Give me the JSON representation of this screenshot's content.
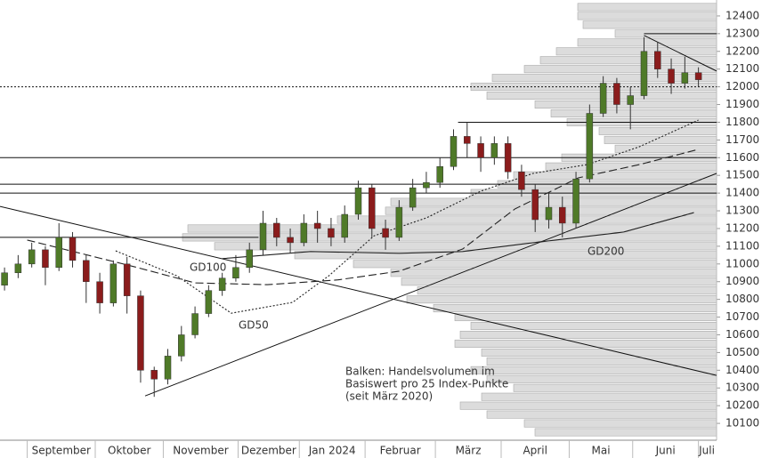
{
  "chart_data": {
    "type": "candlestick",
    "x": [
      2,
      8,
      14,
      20,
      26,
      32,
      38,
      44,
      50,
      56,
      62,
      68,
      74,
      80,
      86,
      92,
      98,
      104,
      110,
      116,
      122,
      128,
      134,
      140,
      146,
      152,
      158,
      164,
      170,
      176,
      182,
      188,
      194,
      200,
      206,
      212,
      218,
      224,
      230,
      236,
      242,
      248,
      254,
      260,
      266,
      272,
      278,
      284,
      290,
      296,
      302,
      308
    ],
    "open": [
      10880,
      10950,
      11000,
      11080,
      10980,
      11150,
      11020,
      10900,
      10780,
      11000,
      10820,
      10400,
      10350,
      10480,
      10600,
      10720,
      10850,
      10920,
      10980,
      11080,
      11230,
      11150,
      11120,
      11230,
      11200,
      11150,
      11280,
      11430,
      11200,
      11150,
      11320,
      11430,
      11460,
      11550,
      11720,
      11680,
      11600,
      11680,
      11520,
      11420,
      11250,
      11320,
      11230,
      11480,
      11850,
      12020,
      11900,
      11950,
      12200,
      12100,
      12020,
      12080
    ],
    "high": [
      10980,
      11050,
      11120,
      11100,
      11230,
      11180,
      11050,
      10950,
      11020,
      11040,
      10850,
      10420,
      10520,
      10650,
      10760,
      10880,
      10950,
      11050,
      11120,
      11300,
      11260,
      11200,
      11280,
      11300,
      11260,
      11330,
      11470,
      11450,
      11250,
      11360,
      11480,
      11520,
      11600,
      11760,
      11800,
      11720,
      11720,
      11720,
      11560,
      11450,
      11400,
      11380,
      11520,
      11900,
      12060,
      12050,
      12000,
      12280,
      12250,
      12160,
      12170,
      12110
    ],
    "low": [
      10850,
      10920,
      10980,
      10880,
      10960,
      10980,
      10780,
      10720,
      10760,
      10720,
      10330,
      10250,
      10320,
      10450,
      10580,
      10700,
      10820,
      10900,
      10950,
      11050,
      11100,
      11060,
      11100,
      11120,
      11100,
      11120,
      11250,
      11150,
      11080,
      11130,
      11300,
      11400,
      11430,
      11530,
      11600,
      11520,
      11560,
      11480,
      11380,
      11180,
      11200,
      11150,
      11200,
      11460,
      11830,
      11850,
      11760,
      11930,
      12050,
      11960,
      11990,
      12000
    ],
    "close": [
      10950,
      11000,
      11080,
      10980,
      11150,
      11020,
      10900,
      10780,
      11000,
      10820,
      10400,
      10350,
      10480,
      10600,
      10720,
      10850,
      10920,
      10980,
      11080,
      11230,
      11150,
      11120,
      11230,
      11200,
      11150,
      11280,
      11430,
      11200,
      11150,
      11320,
      11430,
      11460,
      11550,
      11720,
      11680,
      11600,
      11680,
      11520,
      11420,
      11250,
      11320,
      11230,
      11480,
      11850,
      12020,
      11900,
      11950,
      12200,
      12100,
      12020,
      12080,
      12040
    ],
    "up_color": "#4f7a28",
    "down_color": "#8b1c1c",
    "xlim": [
      0,
      316
    ],
    "ylim": [
      10005,
      12490
    ],
    "yticks": [
      10100,
      10200,
      10300,
      10400,
      10500,
      10600,
      10700,
      10800,
      10900,
      11000,
      11100,
      11200,
      11300,
      11400,
      11500,
      11600,
      11700,
      11800,
      11900,
      12000,
      12100,
      12200,
      12300,
      12400
    ],
    "xticks": [
      {
        "value": 12,
        "label": "September"
      },
      {
        "value": 42,
        "label": "Oktober"
      },
      {
        "value": 72,
        "label": "November"
      },
      {
        "value": 105,
        "label": "Dezember"
      },
      {
        "value": 132,
        "label": "Jan 2024"
      },
      {
        "value": 161,
        "label": "Februar"
      },
      {
        "value": 192,
        "label": "März"
      },
      {
        "value": 221,
        "label": "April"
      },
      {
        "value": 251,
        "label": "Mai"
      },
      {
        "value": 279,
        "label": "Juni"
      },
      {
        "value": 308,
        "label": "Juli"
      }
    ],
    "moving_averages": [
      {
        "name": "GD50",
        "style": "dotted",
        "x": [
          51,
          78,
          102,
          129,
          145,
          165,
          188,
          212,
          235,
          259,
          282,
          308
        ],
        "values": [
          11074,
          10933,
          10722,
          10783,
          10933,
          11159,
          11260,
          11411,
          11511,
          11561,
          11662,
          11812
        ]
      },
      {
        "name": "GD100",
        "style": "dashed",
        "x": [
          12,
          59,
          86,
          118,
          149,
          176,
          204,
          227,
          255,
          282,
          308
        ],
        "values": [
          11135,
          10985,
          10893,
          10883,
          10910,
          10959,
          11084,
          11310,
          11486,
          11561,
          11647
        ]
      },
      {
        "name": "GD200",
        "style": "solid",
        "x": [
          98,
          137,
          176,
          204,
          235,
          275,
          306
        ],
        "values": [
          11030,
          11070,
          11060,
          11070,
          11120,
          11180,
          11290
        ]
      }
    ],
    "trendlines": [
      {
        "x": [
          0,
          316
        ],
        "values": [
          11325,
          10371
        ]
      },
      {
        "x": [
          284,
          316
        ],
        "values": [
          12290,
          12089
        ]
      },
      {
        "x": [
          64,
          316
        ],
        "values": [
          10255,
          11511
        ]
      }
    ],
    "levels": [
      {
        "value": 12300,
        "x": [
          284,
          316
        ],
        "style": "solid"
      },
      {
        "value": 11800,
        "x": [
          202,
          316
        ],
        "style": "solid"
      },
      {
        "value": 11600,
        "x": [
          0,
          316
        ],
        "style": "solid"
      },
      {
        "value": 11450,
        "x": [
          0,
          316
        ],
        "style": "solid"
      },
      {
        "value": 11400,
        "x": [
          0,
          316
        ],
        "style": "solid"
      },
      {
        "value": 11150,
        "x": [
          0,
          114
        ],
        "style": "solid"
      },
      {
        "value": 12000,
        "x": [
          0,
          316
        ],
        "style": "dotted"
      }
    ],
    "profile": {
      "color": "#dcdcdc",
      "levels": [
        12450,
        12400,
        12350,
        12300,
        12250,
        12200,
        12150,
        12100,
        12050,
        12000,
        11950,
        11900,
        11850,
        11800,
        11750,
        11700,
        11650,
        11600,
        11550,
        11500,
        11450,
        11400,
        11350,
        11300,
        11250,
        11200,
        11150,
        11100,
        11050,
        11000,
        10950,
        10900,
        10850,
        10800,
        10750,
        10700,
        10650,
        10600,
        10550,
        10500,
        10450,
        10400,
        10350,
        10300,
        10250,
        10200,
        10150,
        10100,
        10050
      ],
      "values": [
        26,
        26,
        25,
        19,
        26,
        30,
        33,
        36,
        42,
        46,
        43,
        34,
        31,
        28,
        22,
        21,
        19,
        29,
        32,
        38,
        41,
        46,
        61,
        62,
        71,
        99,
        100,
        94,
        79,
        68,
        61,
        59,
        56,
        58,
        53,
        49,
        46,
        48,
        49,
        44,
        43,
        46,
        43,
        38,
        44,
        48,
        43,
        36,
        34
      ]
    },
    "note": [
      "Balken: Handelsvolumen im",
      "Basiswert pro 25 Index-Punkte",
      "(seit März 2020)"
    ]
  }
}
